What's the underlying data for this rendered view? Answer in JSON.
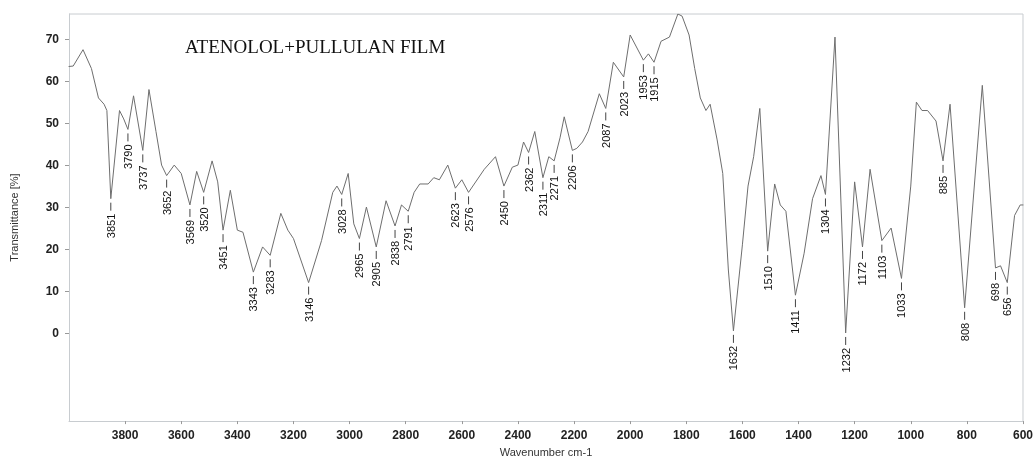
{
  "chart_data": {
    "type": "line",
    "title": "ATENOLOL+PULLULAN FILM",
    "xlabel": "Wavenumber cm-1",
    "ylabel": "Transmittance [%]",
    "xlim": [
      4000,
      600
    ],
    "xticks": [
      3800,
      3600,
      3400,
      3200,
      3000,
      2800,
      2600,
      2400,
      2200,
      2000,
      1800,
      1600,
      1400,
      1200,
      1000,
      800,
      600
    ],
    "ylim": [
      -21,
      76
    ],
    "yticks": [
      0,
      10,
      20,
      30,
      40,
      50,
      60,
      70
    ],
    "grid": false,
    "marker": "none",
    "line_style": "solid",
    "series": [
      {
        "color": "#6e6e6e",
        "x": [
          4000,
          3985,
          3950,
          3920,
          3895,
          3875,
          3865,
          3851,
          3820,
          3805,
          3790,
          3770,
          3737,
          3715,
          3690,
          3670,
          3652,
          3625,
          3600,
          3569,
          3545,
          3520,
          3490,
          3470,
          3451,
          3425,
          3400,
          3380,
          3343,
          3310,
          3283,
          3245,
          3220,
          3200,
          3146,
          3100,
          3060,
          3045,
          3028,
          3005,
          2985,
          2965,
          2940,
          2905,
          2870,
          2838,
          2815,
          2791,
          2770,
          2750,
          2720,
          2700,
          2680,
          2650,
          2623,
          2600,
          2576,
          2520,
          2480,
          2450,
          2420,
          2400,
          2380,
          2362,
          2340,
          2311,
          2290,
          2271,
          2250,
          2235,
          2206,
          2190,
          2170,
          2150,
          2110,
          2087,
          2060,
          2023,
          2000,
          1953,
          1935,
          1915,
          1890,
          1860,
          1830,
          1815,
          1790,
          1770,
          1750,
          1730,
          1715,
          1690,
          1670,
          1650,
          1632,
          1600,
          1580,
          1560,
          1538,
          1510,
          1485,
          1465,
          1445,
          1411,
          1380,
          1350,
          1320,
          1304,
          1270,
          1232,
          1200,
          1172,
          1145,
          1103,
          1070,
          1033,
          1000,
          980,
          960,
          940,
          910,
          885,
          860,
          808,
          745,
          698,
          680,
          656,
          630,
          610,
          600
        ],
        "values": [
          63.5,
          63.6,
          67.5,
          63,
          56,
          54.5,
          53,
          32,
          53,
          51,
          48.5,
          56.5,
          43.5,
          58,
          48,
          40,
          37.5,
          40,
          38,
          30.5,
          38.5,
          33.5,
          41,
          36,
          24.5,
          34,
          24.5,
          24,
          14.5,
          20.5,
          18.5,
          28.5,
          24.5,
          22.5,
          12,
          22,
          33.5,
          35,
          33,
          38,
          26,
          22.5,
          30,
          20.5,
          31.5,
          25.5,
          30.5,
          29,
          33.5,
          35.5,
          35.5,
          37,
          36.5,
          40,
          34.5,
          36.5,
          33.5,
          39,
          42,
          35,
          39.5,
          40,
          45.5,
          43,
          48,
          37,
          42,
          41,
          46.5,
          51.5,
          43.5,
          44,
          45.5,
          48,
          57,
          53.5,
          64.5,
          61,
          71,
          65,
          66.5,
          64.5,
          69.5,
          70.5,
          76,
          75.5,
          71,
          63,
          56,
          53,
          54.5,
          46,
          38,
          15,
          0.5,
          21,
          35,
          42,
          53.5,
          19.5,
          35.5,
          30.5,
          29,
          9,
          19,
          32,
          37.5,
          33,
          70.5,
          0,
          36,
          20.5,
          39,
          22,
          25,
          13,
          35,
          55,
          53,
          53,
          50.5,
          41,
          54.5,
          6,
          59,
          15.5,
          16,
          12,
          28,
          30.5,
          30.5
        ]
      }
    ],
    "annotations": [
      {
        "text": "3851",
        "x": 3851,
        "y": 32
      },
      {
        "text": "3790",
        "x": 3790,
        "y": 48.5
      },
      {
        "text": "3737",
        "x": 3737,
        "y": 43.5
      },
      {
        "text": "3652",
        "x": 3652,
        "y": 37.5
      },
      {
        "text": "3569",
        "x": 3569,
        "y": 30.5
      },
      {
        "text": "3520",
        "x": 3520,
        "y": 33.5
      },
      {
        "text": "3451",
        "x": 3451,
        "y": 24.5
      },
      {
        "text": "3343",
        "x": 3343,
        "y": 14.5
      },
      {
        "text": "3283",
        "x": 3283,
        "y": 18.5
      },
      {
        "text": "3146",
        "x": 3146,
        "y": 12
      },
      {
        "text": "3028",
        "x": 3028,
        "y": 33
      },
      {
        "text": "2965",
        "x": 2965,
        "y": 22.5
      },
      {
        "text": "2905",
        "x": 2905,
        "y": 20.5
      },
      {
        "text": "2838",
        "x": 2838,
        "y": 25.5
      },
      {
        "text": "2791",
        "x": 2791,
        "y": 29
      },
      {
        "text": "2623",
        "x": 2623,
        "y": 34.5
      },
      {
        "text": "2576",
        "x": 2576,
        "y": 33.5
      },
      {
        "text": "2450",
        "x": 2450,
        "y": 35
      },
      {
        "text": "2362",
        "x": 2362,
        "y": 43
      },
      {
        "text": "2311",
        "x": 2311,
        "y": 37
      },
      {
        "text": "2271",
        "x": 2271,
        "y": 41
      },
      {
        "text": "2206",
        "x": 2206,
        "y": 43.5
      },
      {
        "text": "2087",
        "x": 2087,
        "y": 53.5
      },
      {
        "text": "2023",
        "x": 2023,
        "y": 61
      },
      {
        "text": "1953",
        "x": 1953,
        "y": 65
      },
      {
        "text": "1915",
        "x": 1915,
        "y": 64.5
      },
      {
        "text": "1632",
        "x": 1632,
        "y": 0.5
      },
      {
        "text": "1510",
        "x": 1510,
        "y": 19.5
      },
      {
        "text": "1411",
        "x": 1411,
        "y": 9
      },
      {
        "text": "1304",
        "x": 1304,
        "y": 33
      },
      {
        "text": "1232",
        "x": 1232,
        "y": 0
      },
      {
        "text": "1172",
        "x": 1172,
        "y": 20.5
      },
      {
        "text": "1103",
        "x": 1103,
        "y": 22
      },
      {
        "text": "1033",
        "x": 1033,
        "y": 13
      },
      {
        "text": "885",
        "x": 885,
        "y": 41
      },
      {
        "text": "808",
        "x": 808,
        "y": 6
      },
      {
        "text": "698",
        "x": 698,
        "y": 15.5
      },
      {
        "text": "656",
        "x": 656,
        "y": 12
      }
    ]
  }
}
